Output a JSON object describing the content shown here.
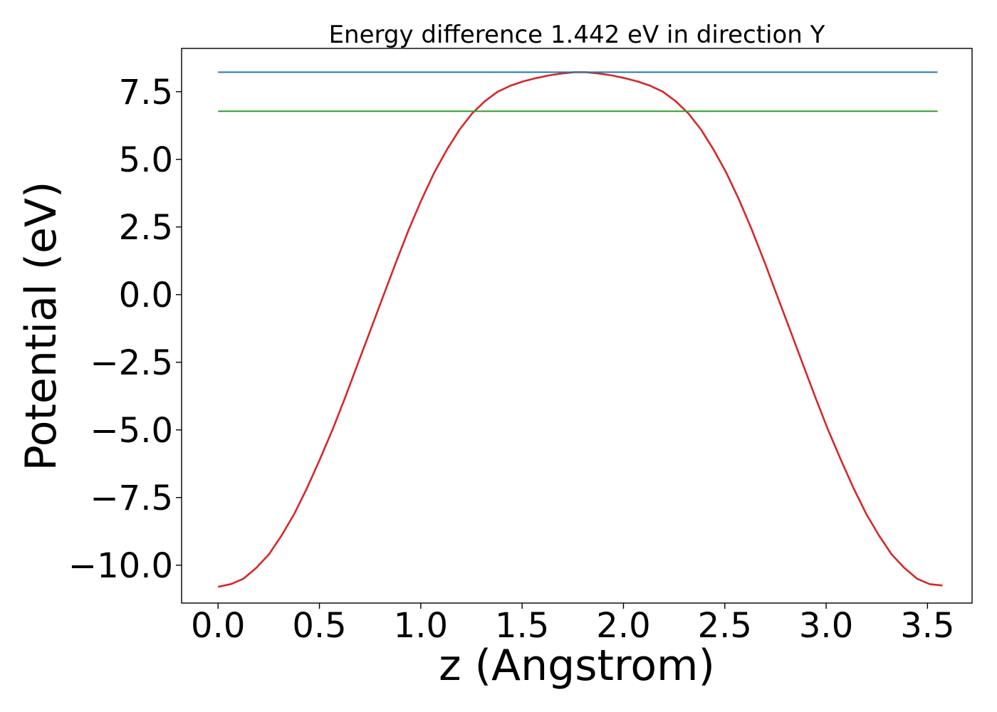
{
  "chart_data": {
    "type": "line",
    "title": "Energy difference 1.442 eV in direction Y",
    "xlabel": "z (Angstrom)",
    "ylabel": "Potential (eV)",
    "xlim": [
      -0.18,
      3.72
    ],
    "ylim": [
      -11.4,
      9.1
    ],
    "xticks": [
      0.0,
      0.5,
      1.0,
      1.5,
      2.0,
      2.5,
      3.0,
      3.5
    ],
    "xtick_labels": [
      "0.0",
      "0.5",
      "1.0",
      "1.5",
      "2.0",
      "2.5",
      "3.0",
      "3.5"
    ],
    "yticks": [
      -10.0,
      -7.5,
      -5.0,
      -2.5,
      0.0,
      2.5,
      5.0,
      7.5
    ],
    "ytick_labels": [
      "−10.0",
      "−7.5",
      "−5.0",
      "−2.5",
      "0.0",
      "2.5",
      "5.0",
      "7.5"
    ],
    "grid": false,
    "series": [
      {
        "color": "#d62728",
        "x": [
          0.0,
          0.0627,
          0.1254,
          0.1881,
          0.2508,
          0.3135,
          0.3762,
          0.4389,
          0.5016,
          0.5643,
          0.627,
          0.6897,
          0.7524,
          0.8151,
          0.8778,
          0.9405,
          1.0032,
          1.0659,
          1.1286,
          1.1913,
          1.254,
          1.3167,
          1.3794,
          1.4421,
          1.5048,
          1.5675,
          1.6302,
          1.6929,
          1.7556,
          1.8183,
          1.881,
          1.9437,
          2.0064,
          2.0691,
          2.1318,
          2.1945,
          2.2572,
          2.3199,
          2.3826,
          2.4453,
          2.508,
          2.5707,
          2.6334,
          2.6961,
          2.7588,
          2.8215,
          2.8842,
          2.9469,
          3.0096,
          3.0723,
          3.135,
          3.1977,
          3.2604,
          3.3231,
          3.3858,
          3.4485,
          3.5112,
          3.5739
        ],
        "y": [
          -10.8,
          -10.7,
          -10.5,
          -10.1,
          -9.6,
          -8.9,
          -8.1,
          -7.15,
          -6.1,
          -5.0,
          -3.8,
          -2.55,
          -1.3,
          -0.05,
          1.2,
          2.4,
          3.5,
          4.5,
          5.35,
          6.1,
          6.7,
          7.15,
          7.5,
          7.72,
          7.88,
          8.0,
          8.1,
          8.17,
          8.22,
          8.22,
          8.17,
          8.1,
          8.0,
          7.88,
          7.72,
          7.5,
          7.15,
          6.7,
          6.1,
          5.35,
          4.5,
          3.5,
          2.4,
          1.2,
          -0.05,
          -1.3,
          -2.55,
          -3.8,
          -5.0,
          -6.1,
          -7.15,
          -8.1,
          -8.9,
          -9.6,
          -10.1,
          -10.5,
          -10.7,
          -10.75
        ]
      },
      {
        "color": "#1f77b4",
        "x": [
          0.0,
          3.55
        ],
        "y": [
          8.22,
          8.22
        ]
      },
      {
        "color": "#2ca02c",
        "x": [
          0.0,
          3.55
        ],
        "y": [
          6.78,
          6.78
        ]
      }
    ]
  }
}
